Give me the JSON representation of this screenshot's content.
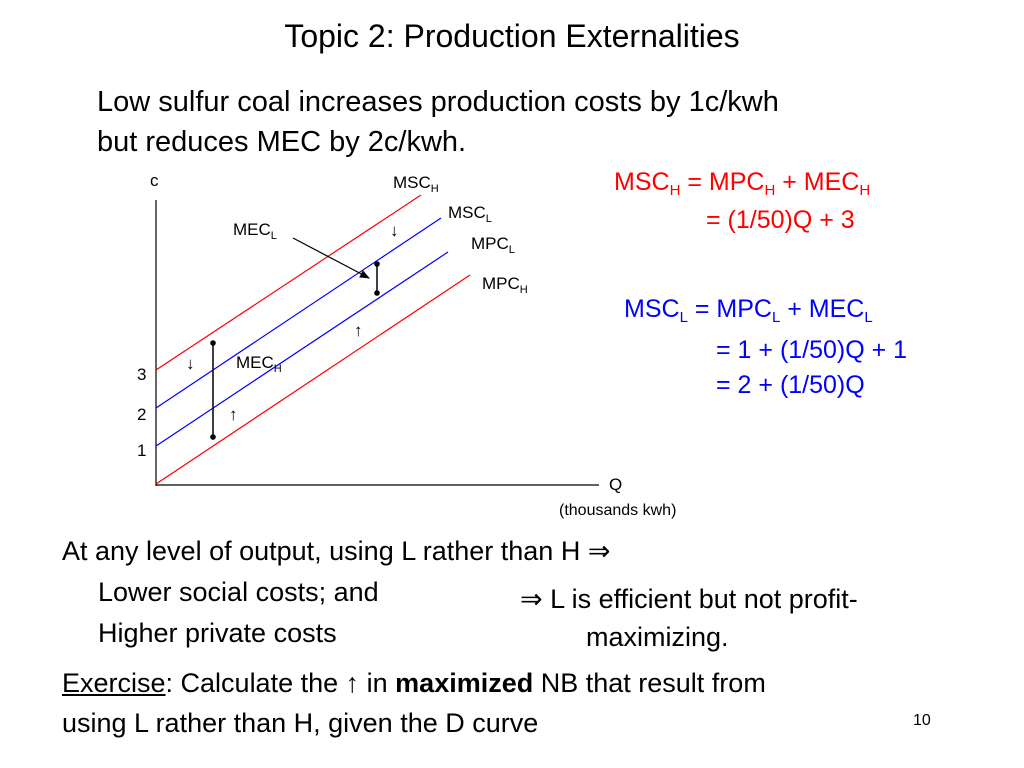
{
  "slide": {
    "title": "Topic 2: Production Externalities",
    "intro_line1": "Low sulfur coal increases production costs by 1c/kwh",
    "intro_line2": "but reduces MEC by 2c/kwh.",
    "page_number": "10"
  },
  "equations": {
    "high": {
      "color": "#ff0000",
      "lhs_main": "MSC",
      "lhs_sub": "H",
      "eq_mid1": " = MPC",
      "mpc_sub": "H",
      "eq_mid2": " + MEC",
      "mec_sub": "H",
      "line2": "= (1/50)Q + 3"
    },
    "low": {
      "color": "#0000ff",
      "lhs_main": "MSC",
      "lhs_sub": "L",
      "eq_mid1": " = MPC",
      "mpc_sub": "L",
      "eq_mid2": " + MEC",
      "mec_sub": "L",
      "line2": "= 1 + (1/50)Q + 1",
      "line3": "= 2 + (1/50)Q"
    }
  },
  "diagram": {
    "y_axis_label": "c",
    "x_axis_label": "Q",
    "x_axis_sublabel": "(thousands kwh)",
    "y_ticks": [
      "3",
      "2",
      "1"
    ],
    "curves": {
      "msc_h": {
        "main": "MSC",
        "sub": "H",
        "color": "#ff0000"
      },
      "msc_l": {
        "main": "MSC",
        "sub": "L",
        "color": "#0000ff"
      },
      "mpc_l": {
        "main": "MPC",
        "sub": "L",
        "color": "#0000ff"
      },
      "mpc_h": {
        "main": "MPC",
        "sub": "H",
        "color": "#ff0000"
      }
    },
    "mec_l": {
      "main": "MEC",
      "sub": "L"
    },
    "mec_h": {
      "main": "MEC",
      "sub": "H"
    },
    "arrow_down": "↓",
    "arrow_up": "↑"
  },
  "bottom": {
    "line1": "At any level of output, using L rather than H ⇒",
    "line2": "Lower social costs; and",
    "line3": "Higher private costs",
    "conclusion_line1": "⇒  L is efficient but not profit-",
    "conclusion_line2": "maximizing.",
    "exercise_label": "Exercise",
    "exercise_pre": ": Calculate the ",
    "exercise_arrow": "↑",
    "exercise_mid": " in ",
    "exercise_bold": "maximized",
    "exercise_post": " NB that result from",
    "exercise_line2": "using L rather than H, given the D curve"
  }
}
